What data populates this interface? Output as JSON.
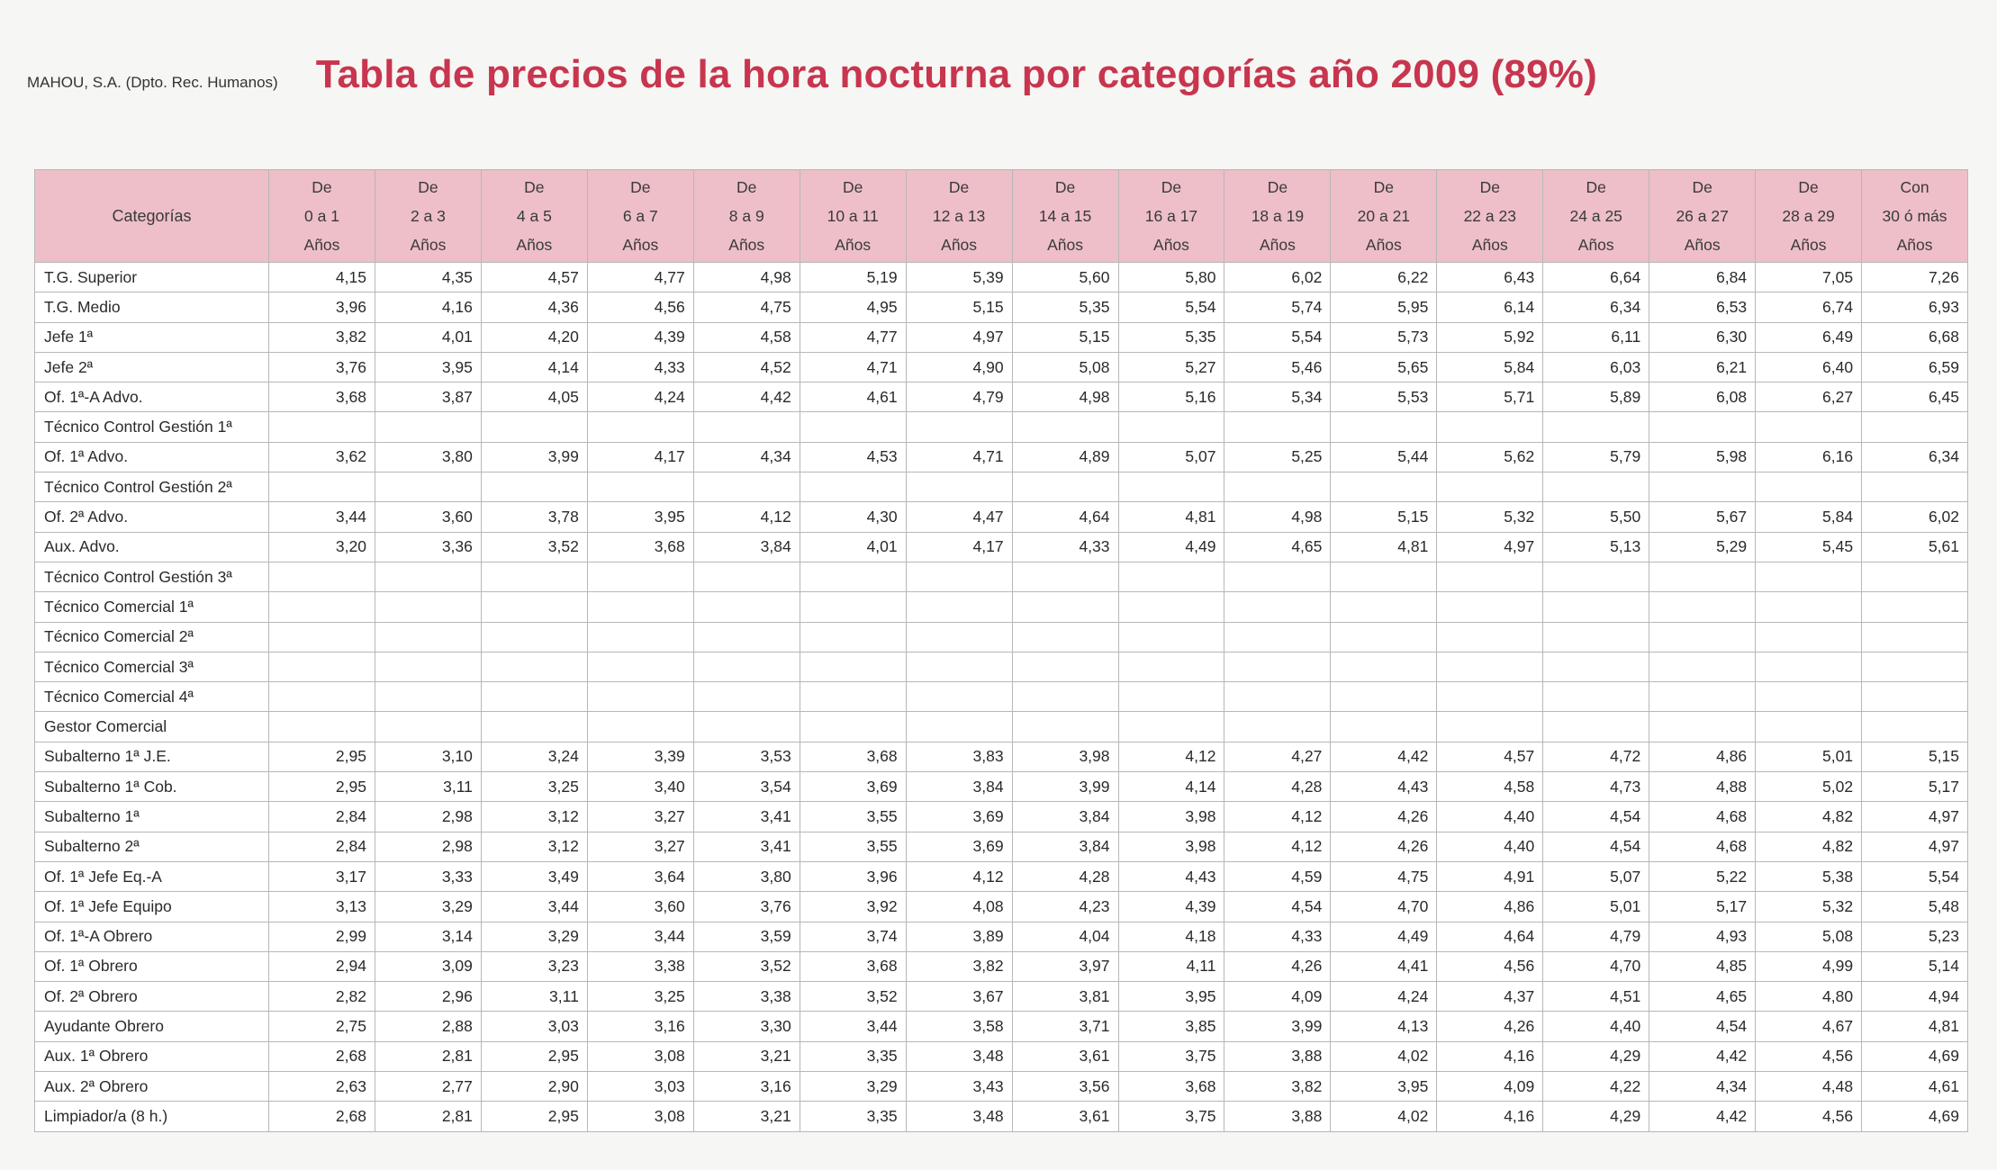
{
  "header": {
    "org": "MAHOU, S.A. (Dpto. Rec. Humanos)",
    "title": "Tabla de precios de la hora nocturna por categorías año 2009 (89%)"
  },
  "table": {
    "category_header": "Categorías",
    "columns": [
      [
        "De",
        "0 a 1",
        "Años"
      ],
      [
        "De",
        "2 a 3",
        "Años"
      ],
      [
        "De",
        "4 a 5",
        "Años"
      ],
      [
        "De",
        "6 a 7",
        "Años"
      ],
      [
        "De",
        "8 a 9",
        "Años"
      ],
      [
        "De",
        "10 a 11",
        "Años"
      ],
      [
        "De",
        "12 a 13",
        "Años"
      ],
      [
        "De",
        "14 a 15",
        "Años"
      ],
      [
        "De",
        "16 a 17",
        "Años"
      ],
      [
        "De",
        "18 a 19",
        "Años"
      ],
      [
        "De",
        "20 a 21",
        "Años"
      ],
      [
        "De",
        "22 a 23",
        "Años"
      ],
      [
        "De",
        "24 a 25",
        "Años"
      ],
      [
        "De",
        "26 a 27",
        "Años"
      ],
      [
        "De",
        "28 a 29",
        "Años"
      ],
      [
        "Con",
        "30 ó más",
        "Años"
      ]
    ],
    "rows": [
      {
        "cat": "T.G. Superior",
        "v": [
          "4,15",
          "4,35",
          "4,57",
          "4,77",
          "4,98",
          "5,19",
          "5,39",
          "5,60",
          "5,80",
          "6,02",
          "6,22",
          "6,43",
          "6,64",
          "6,84",
          "7,05",
          "7,26"
        ]
      },
      {
        "cat": "T.G. Medio",
        "v": [
          "3,96",
          "4,16",
          "4,36",
          "4,56",
          "4,75",
          "4,95",
          "5,15",
          "5,35",
          "5,54",
          "5,74",
          "5,95",
          "6,14",
          "6,34",
          "6,53",
          "6,74",
          "6,93"
        ]
      },
      {
        "cat": "Jefe 1ª",
        "v": [
          "3,82",
          "4,01",
          "4,20",
          "4,39",
          "4,58",
          "4,77",
          "4,97",
          "5,15",
          "5,35",
          "5,54",
          "5,73",
          "5,92",
          "6,11",
          "6,30",
          "6,49",
          "6,68"
        ]
      },
      {
        "cat": "Jefe 2ª",
        "v": [
          "3,76",
          "3,95",
          "4,14",
          "4,33",
          "4,52",
          "4,71",
          "4,90",
          "5,08",
          "5,27",
          "5,46",
          "5,65",
          "5,84",
          "6,03",
          "6,21",
          "6,40",
          "6,59"
        ]
      },
      {
        "cat": "Of. 1ª-A Advo.",
        "v": [
          "3,68",
          "3,87",
          "4,05",
          "4,24",
          "4,42",
          "4,61",
          "4,79",
          "4,98",
          "5,16",
          "5,34",
          "5,53",
          "5,71",
          "5,89",
          "6,08",
          "6,27",
          "6,45"
        ]
      },
      {
        "cat": "Técnico Control Gestión 1ª",
        "v": [
          "",
          "",
          "",
          "",
          "",
          "",
          "",
          "",
          "",
          "",
          "",
          "",
          "",
          "",
          "",
          ""
        ]
      },
      {
        "cat": "Of. 1ª Advo.",
        "v": [
          "3,62",
          "3,80",
          "3,99",
          "4,17",
          "4,34",
          "4,53",
          "4,71",
          "4,89",
          "5,07",
          "5,25",
          "5,44",
          "5,62",
          "5,79",
          "5,98",
          "6,16",
          "6,34"
        ]
      },
      {
        "cat": "Técnico Control Gestión 2ª",
        "v": [
          "",
          "",
          "",
          "",
          "",
          "",
          "",
          "",
          "",
          "",
          "",
          "",
          "",
          "",
          "",
          ""
        ]
      },
      {
        "cat": "Of. 2ª Advo.",
        "v": [
          "3,44",
          "3,60",
          "3,78",
          "3,95",
          "4,12",
          "4,30",
          "4,47",
          "4,64",
          "4,81",
          "4,98",
          "5,15",
          "5,32",
          "5,50",
          "5,67",
          "5,84",
          "6,02"
        ]
      },
      {
        "cat": "Aux. Advo.",
        "v": [
          "3,20",
          "3,36",
          "3,52",
          "3,68",
          "3,84",
          "4,01",
          "4,17",
          "4,33",
          "4,49",
          "4,65",
          "4,81",
          "4,97",
          "5,13",
          "5,29",
          "5,45",
          "5,61"
        ]
      },
      {
        "cat": "Técnico Control Gestión 3ª",
        "v": [
          "",
          "",
          "",
          "",
          "",
          "",
          "",
          "",
          "",
          "",
          "",
          "",
          "",
          "",
          "",
          ""
        ]
      },
      {
        "cat": "Técnico Comercial 1ª",
        "v": [
          "",
          "",
          "",
          "",
          "",
          "",
          "",
          "",
          "",
          "",
          "",
          "",
          "",
          "",
          "",
          ""
        ]
      },
      {
        "cat": "Técnico Comercial 2ª",
        "v": [
          "",
          "",
          "",
          "",
          "",
          "",
          "",
          "",
          "",
          "",
          "",
          "",
          "",
          "",
          "",
          ""
        ]
      },
      {
        "cat": "Técnico Comercial 3ª",
        "v": [
          "",
          "",
          "",
          "",
          "",
          "",
          "",
          "",
          "",
          "",
          "",
          "",
          "",
          "",
          "",
          ""
        ]
      },
      {
        "cat": "Técnico Comercial 4ª",
        "v": [
          "",
          "",
          "",
          "",
          "",
          "",
          "",
          "",
          "",
          "",
          "",
          "",
          "",
          "",
          "",
          ""
        ]
      },
      {
        "cat": "Gestor Comercial",
        "v": [
          "",
          "",
          "",
          "",
          "",
          "",
          "",
          "",
          "",
          "",
          "",
          "",
          "",
          "",
          "",
          ""
        ]
      },
      {
        "cat": "Subalterno 1ª J.E.",
        "v": [
          "2,95",
          "3,10",
          "3,24",
          "3,39",
          "3,53",
          "3,68",
          "3,83",
          "3,98",
          "4,12",
          "4,27",
          "4,42",
          "4,57",
          "4,72",
          "4,86",
          "5,01",
          "5,15"
        ]
      },
      {
        "cat": "Subalterno 1ª Cob.",
        "v": [
          "2,95",
          "3,11",
          "3,25",
          "3,40",
          "3,54",
          "3,69",
          "3,84",
          "3,99",
          "4,14",
          "4,28",
          "4,43",
          "4,58",
          "4,73",
          "4,88",
          "5,02",
          "5,17"
        ]
      },
      {
        "cat": "Subalterno 1ª",
        "v": [
          "2,84",
          "2,98",
          "3,12",
          "3,27",
          "3,41",
          "3,55",
          "3,69",
          "3,84",
          "3,98",
          "4,12",
          "4,26",
          "4,40",
          "4,54",
          "4,68",
          "4,82",
          "4,97"
        ]
      },
      {
        "cat": "Subalterno 2ª",
        "v": [
          "2,84",
          "2,98",
          "3,12",
          "3,27",
          "3,41",
          "3,55",
          "3,69",
          "3,84",
          "3,98",
          "4,12",
          "4,26",
          "4,40",
          "4,54",
          "4,68",
          "4,82",
          "4,97"
        ]
      },
      {
        "cat": "Of. 1ª Jefe Eq.-A",
        "v": [
          "3,17",
          "3,33",
          "3,49",
          "3,64",
          "3,80",
          "3,96",
          "4,12",
          "4,28",
          "4,43",
          "4,59",
          "4,75",
          "4,91",
          "5,07",
          "5,22",
          "5,38",
          "5,54"
        ]
      },
      {
        "cat": "Of. 1ª Jefe Equipo",
        "v": [
          "3,13",
          "3,29",
          "3,44",
          "3,60",
          "3,76",
          "3,92",
          "4,08",
          "4,23",
          "4,39",
          "4,54",
          "4,70",
          "4,86",
          "5,01",
          "5,17",
          "5,32",
          "5,48"
        ]
      },
      {
        "cat": "Of. 1ª-A Obrero",
        "v": [
          "2,99",
          "3,14",
          "3,29",
          "3,44",
          "3,59",
          "3,74",
          "3,89",
          "4,04",
          "4,18",
          "4,33",
          "4,49",
          "4,64",
          "4,79",
          "4,93",
          "5,08",
          "5,23"
        ]
      },
      {
        "cat": "Of. 1ª Obrero",
        "v": [
          "2,94",
          "3,09",
          "3,23",
          "3,38",
          "3,52",
          "3,68",
          "3,82",
          "3,97",
          "4,11",
          "4,26",
          "4,41",
          "4,56",
          "4,70",
          "4,85",
          "4,99",
          "5,14"
        ]
      },
      {
        "cat": "Of. 2ª Obrero",
        "v": [
          "2,82",
          "2,96",
          "3,11",
          "3,25",
          "3,38",
          "3,52",
          "3,67",
          "3,81",
          "3,95",
          "4,09",
          "4,24",
          "4,37",
          "4,51",
          "4,65",
          "4,80",
          "4,94"
        ]
      },
      {
        "cat": "Ayudante Obrero",
        "v": [
          "2,75",
          "2,88",
          "3,03",
          "3,16",
          "3,30",
          "3,44",
          "3,58",
          "3,71",
          "3,85",
          "3,99",
          "4,13",
          "4,26",
          "4,40",
          "4,54",
          "4,67",
          "4,81"
        ]
      },
      {
        "cat": "Aux. 1ª Obrero",
        "v": [
          "2,68",
          "2,81",
          "2,95",
          "3,08",
          "3,21",
          "3,35",
          "3,48",
          "3,61",
          "3,75",
          "3,88",
          "4,02",
          "4,16",
          "4,29",
          "4,42",
          "4,56",
          "4,69"
        ]
      },
      {
        "cat": "Aux. 2ª Obrero",
        "v": [
          "2,63",
          "2,77",
          "2,90",
          "3,03",
          "3,16",
          "3,29",
          "3,43",
          "3,56",
          "3,68",
          "3,82",
          "3,95",
          "4,09",
          "4,22",
          "4,34",
          "4,48",
          "4,61"
        ]
      },
      {
        "cat": "Limpiador/a (8 h.)",
        "v": [
          "2,68",
          "2,81",
          "2,95",
          "3,08",
          "3,21",
          "3,35",
          "3,48",
          "3,61",
          "3,75",
          "3,88",
          "4,02",
          "4,16",
          "4,29",
          "4,42",
          "4,56",
          "4,69"
        ]
      }
    ]
  }
}
